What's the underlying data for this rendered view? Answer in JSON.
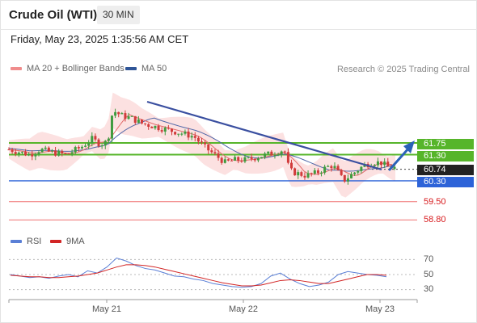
{
  "header": {
    "title": "Crude Oil (WTI)",
    "timeframe": "30 MIN"
  },
  "datetime": "Friday, May 23, 2025 1:35:56 AM CET",
  "legend": [
    {
      "label": "MA 20 + Bollinger Bands",
      "color": "#f08c8c"
    },
    {
      "label": "MA 50",
      "color": "#2f5597"
    }
  ],
  "credit": "Research © 2025 Trading Central",
  "colors": {
    "up": "#3f9b3f",
    "down": "#d13b3b",
    "ma20": "#e26b6b",
    "band": "#fbd9d9",
    "ma50": "#4f67a8",
    "trend": "#3a4fa0",
    "arrow": "#2b62b8",
    "resistance": "#56b52a",
    "support": "#2d63d8",
    "target": "#f07070",
    "rsi": "#5a7fd6",
    "rsi_ma": "#d22525"
  },
  "levels": {
    "resistance2": "61.75",
    "resistance1": "61.30",
    "last": "60.74",
    "pivot": "60.30",
    "support1": "59.50",
    "support2": "58.80"
  },
  "rsi_legend": [
    {
      "label": "RSI",
      "color": "#5a7fd6"
    },
    {
      "label": "9MA",
      "color": "#d22525"
    }
  ],
  "rsi_ticks": [
    "70",
    "50",
    "30"
  ],
  "chart_data": {
    "type": "line",
    "title": "Crude Oil (WTI)",
    "timeframe": "30 MIN",
    "x_labels": [
      "May 21",
      "May 22",
      "May 23"
    ],
    "ylim": [
      58.5,
      63.4
    ],
    "price_points": [
      [
        0,
        61.5
      ],
      [
        10,
        61.4
      ],
      [
        20,
        61.3
      ],
      [
        30,
        61.5
      ],
      [
        40,
        61.4
      ],
      [
        55,
        61.3
      ],
      [
        70,
        61.6
      ],
      [
        80,
        61.9
      ],
      [
        88,
        61.7
      ],
      [
        95,
        61.8
      ],
      [
        100,
        63.0
      ],
      [
        108,
        62.8
      ],
      [
        118,
        62.7
      ],
      [
        128,
        62.5
      ],
      [
        138,
        62.4
      ],
      [
        148,
        62.3
      ],
      [
        158,
        62.2
      ],
      [
        168,
        62.1
      ],
      [
        178,
        62.0
      ],
      [
        188,
        61.6
      ],
      [
        198,
        61.3
      ],
      [
        208,
        61.0
      ],
      [
        218,
        61.1
      ],
      [
        228,
        61.1
      ],
      [
        238,
        61.2
      ],
      [
        248,
        61.3
      ],
      [
        258,
        61.4
      ],
      [
        265,
        61.5
      ],
      [
        270,
        60.7
      ],
      [
        276,
        60.6
      ],
      [
        286,
        60.5
      ],
      [
        296,
        60.6
      ],
      [
        305,
        60.8
      ],
      [
        312,
        60.9
      ],
      [
        322,
        60.3
      ],
      [
        332,
        60.6
      ],
      [
        342,
        60.9
      ],
      [
        350,
        61.0
      ],
      [
        358,
        61.0
      ],
      [
        366,
        60.8
      ],
      [
        372,
        60.8
      ]
    ],
    "levels": [
      61.75,
      61.3,
      60.74,
      60.3,
      59.5,
      58.8
    ],
    "rsi": {
      "ylim": [
        20,
        80
      ],
      "ticks": [
        70,
        50,
        30
      ],
      "rsi_values": [
        50,
        48,
        46,
        47,
        45,
        48,
        50,
        47,
        55,
        52,
        60,
        72,
        68,
        62,
        58,
        56,
        52,
        48,
        47,
        44,
        42,
        38,
        36,
        34,
        33,
        34,
        38,
        48,
        52,
        44,
        38,
        34,
        36,
        40,
        50,
        54,
        52,
        50,
        49,
        47
      ],
      "ma_values": [
        49,
        48,
        47,
        47,
        46,
        46,
        47,
        48,
        50,
        52,
        56,
        60,
        63,
        63,
        62,
        60,
        57,
        54,
        51,
        48,
        45,
        42,
        39,
        37,
        35,
        35,
        36,
        39,
        42,
        43,
        42,
        40,
        38,
        38,
        41,
        44,
        47,
        50,
        50,
        49
      ]
    }
  }
}
